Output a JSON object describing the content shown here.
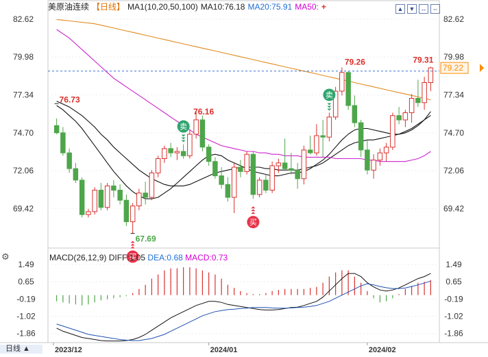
{
  "header": {
    "title": "美原油连续",
    "period": "【日线】",
    "ma1": "MA1(10,20,50,100)",
    "ma10": "MA10:76.18",
    "ma20": "MA20:75.91",
    "ma50": "MA50:",
    "plus_icon": "plus-icon"
  },
  "toolbar_icons": [
    "up-arrow-icon",
    "down-arrow-icon",
    "left-right-icon",
    "expand-icon"
  ],
  "macd_header": {
    "title": "MACD(26,12,9)",
    "diff": "DIFF:1.05",
    "dea": "DEA:0.68",
    "macd": "MACD:0.73"
  },
  "bottom_tab": "日线 ▲",
  "colors": {
    "up": "#d9302c",
    "down": "#4da64a",
    "ma10": "#111111",
    "ma20": "#111111",
    "ma50": "#cc22cc",
    "ma100": "#e08a1e",
    "last_price": "#ff8c00",
    "buy_badge": "#e8344a",
    "sell_badge": "#2fa56d"
  },
  "chart_data": [
    {
      "type": "candlestick",
      "ylim": [
        67.0,
        83.0
      ],
      "price_ticks": [
        "82.62",
        "79.98",
        "77.34",
        "74.70",
        "72.06",
        "69.42"
      ],
      "last_price_label": "79.22",
      "annotations": {
        "high_left": "76.73",
        "low": "67.69",
        "mid_high": "76.16",
        "peak": "79.26",
        "last_high": "79.31"
      },
      "signals": [
        {
          "text": "买",
          "kind": "buy",
          "index": 12
        },
        {
          "text": "卖",
          "kind": "sell",
          "index": 20
        },
        {
          "text": "买",
          "kind": "buy",
          "index": 31
        },
        {
          "text": "卖",
          "kind": "sell",
          "index": 43
        }
      ],
      "candles": [
        [
          75.2,
          75.7,
          74.6,
          74.7
        ],
        [
          74.7,
          75.1,
          73.1,
          73.3
        ],
        [
          73.3,
          73.6,
          71.9,
          72.2
        ],
        [
          72.2,
          72.6,
          71.2,
          71.4
        ],
        [
          71.4,
          71.6,
          68.8,
          69.0
        ],
        [
          69.0,
          69.4,
          68.8,
          69.2
        ],
        [
          69.2,
          70.9,
          69.0,
          70.7
        ],
        [
          70.7,
          71.2,
          69.3,
          69.5
        ],
        [
          69.5,
          71.2,
          69.3,
          71.0
        ],
        [
          71.0,
          71.4,
          70.2,
          70.7
        ],
        [
          70.7,
          71.1,
          69.7,
          70.0
        ],
        [
          70.0,
          70.4,
          68.2,
          68.5
        ],
        [
          68.5,
          69.8,
          67.69,
          69.6
        ],
        [
          69.6,
          70.8,
          69.3,
          70.5
        ],
        [
          70.5,
          71.3,
          69.7,
          70.2
        ],
        [
          70.2,
          72.1,
          70.0,
          71.9
        ],
        [
          71.9,
          73.1,
          71.6,
          72.9
        ],
        [
          72.9,
          73.8,
          72.6,
          73.6
        ],
        [
          73.6,
          74.0,
          73.0,
          73.3
        ],
        [
          73.3,
          73.7,
          72.8,
          73.4
        ],
        [
          73.4,
          73.9,
          72.9,
          73.1
        ],
        [
          73.1,
          74.9,
          72.9,
          74.6
        ],
        [
          74.6,
          76.16,
          74.3,
          75.6
        ],
        [
          75.6,
          75.9,
          73.4,
          73.7
        ],
        [
          73.7,
          73.9,
          72.4,
          72.7
        ],
        [
          72.7,
          73.0,
          71.5,
          71.7
        ],
        [
          71.7,
          72.3,
          70.8,
          71.1
        ],
        [
          71.1,
          71.6,
          69.9,
          70.2
        ],
        [
          70.2,
          72.6,
          69.1,
          72.3
        ],
        [
          72.3,
          72.8,
          71.6,
          72.0
        ],
        [
          72.0,
          73.4,
          71.8,
          73.2
        ],
        [
          73.2,
          73.4,
          70.1,
          70.4
        ],
        [
          70.4,
          71.6,
          70.2,
          71.4
        ],
        [
          71.4,
          71.8,
          70.5,
          70.7
        ],
        [
          70.7,
          72.7,
          70.5,
          72.4
        ],
        [
          72.4,
          72.9,
          71.9,
          72.6
        ],
        [
          72.6,
          74.3,
          72.1,
          72.2
        ],
        [
          72.2,
          73.3,
          71.8,
          72.1
        ],
        [
          72.1,
          72.6,
          70.8,
          71.5
        ],
        [
          71.5,
          73.8,
          71.1,
          73.5
        ],
        [
          73.5,
          74.5,
          73.2,
          73.3
        ],
        [
          73.3,
          75.3,
          73.1,
          74.5
        ],
        [
          74.5,
          75.6,
          73.0,
          74.4
        ],
        [
          74.4,
          76.1,
          74.1,
          75.8
        ],
        [
          75.8,
          77.9,
          75.6,
          77.6
        ],
        [
          77.6,
          79.26,
          77.3,
          78.9
        ],
        [
          78.9,
          79.0,
          76.3,
          76.6
        ],
        [
          76.6,
          77.3,
          75.1,
          75.4
        ],
        [
          75.4,
          75.6,
          73.0,
          73.5
        ],
        [
          73.5,
          74.2,
          71.8,
          72.1
        ],
        [
          72.1,
          73.2,
          71.5,
          72.8
        ],
        [
          72.8,
          73.6,
          72.4,
          73.3
        ],
        [
          73.3,
          74.0,
          72.7,
          73.7
        ],
        [
          73.7,
          76.1,
          73.5,
          75.9
        ],
        [
          75.9,
          76.5,
          75.3,
          75.6
        ],
        [
          75.6,
          76.3,
          75.1,
          76.1
        ],
        [
          76.1,
          77.4,
          75.4,
          77.1
        ],
        [
          77.1,
          78.4,
          76.5,
          76.8
        ],
        [
          76.8,
          78.6,
          76.3,
          78.2
        ],
        [
          78.2,
          79.31,
          77.6,
          79.22
        ]
      ],
      "moving_averages": [
        {
          "name": "MA10",
          "values": [
            76.6,
            76.3,
            75.9,
            75.5,
            75.0,
            74.4,
            73.8,
            73.2,
            72.6,
            72.0,
            71.5,
            71.0,
            70.6,
            70.3,
            70.1,
            70.1,
            70.2,
            70.5,
            70.8,
            71.2,
            71.6,
            72.0,
            72.4,
            72.8,
            73.1,
            73.2,
            73.1,
            72.8,
            72.6,
            72.4,
            72.2,
            72.0,
            71.9,
            71.8,
            71.7,
            71.7,
            71.8,
            71.9,
            71.9,
            72.0,
            72.2,
            72.5,
            72.8,
            73.2,
            73.7,
            74.2,
            74.6,
            74.9,
            75.0,
            75.0,
            74.9,
            74.8,
            74.7,
            74.6,
            74.6,
            74.7,
            74.9,
            75.2,
            75.6,
            76.18
          ]
        },
        {
          "name": "MA20",
          "values": [
            76.9,
            76.7,
            76.5,
            76.2,
            75.9,
            75.5,
            75.1,
            74.6,
            74.2,
            73.7,
            73.3,
            72.9,
            72.5,
            72.1,
            71.8,
            71.5,
            71.3,
            71.1,
            71.0,
            71.0,
            71.0,
            71.1,
            71.3,
            71.5,
            71.7,
            71.9,
            72.0,
            72.1,
            72.2,
            72.3,
            72.3,
            72.3,
            72.3,
            72.2,
            72.2,
            72.1,
            72.1,
            72.1,
            72.1,
            72.2,
            72.3,
            72.4,
            72.6,
            72.9,
            73.2,
            73.5,
            73.8,
            74.0,
            74.1,
            74.2,
            74.2,
            74.3,
            74.4,
            74.5,
            74.6,
            74.8,
            75.0,
            75.3,
            75.6,
            75.91
          ]
        },
        {
          "name": "MA50",
          "values": [
            81.9,
            81.6,
            81.3,
            80.9,
            80.5,
            80.1,
            79.7,
            79.3,
            78.9,
            78.5,
            78.2,
            77.9,
            77.6,
            77.3,
            77.0,
            76.7,
            76.4,
            76.1,
            75.8,
            75.5,
            75.2,
            74.9,
            74.6,
            74.4,
            74.2,
            74.0,
            73.8,
            73.7,
            73.6,
            73.5,
            73.4,
            73.4,
            73.3,
            73.3,
            73.2,
            73.2,
            73.1,
            73.1,
            73.1,
            73.0,
            73.0,
            73.0,
            73.0,
            73.0,
            72.9,
            72.9,
            72.9,
            72.9,
            72.9,
            72.8,
            72.8,
            72.7,
            72.7,
            72.7,
            72.7,
            72.7,
            72.8,
            72.9,
            73.1,
            73.4
          ]
        },
        {
          "name": "MA100",
          "values": [
            82.6,
            82.55,
            82.5,
            82.45,
            82.4,
            82.35,
            82.3,
            82.2,
            82.1,
            82.0,
            81.9,
            81.8,
            81.7,
            81.6,
            81.5,
            81.4,
            81.3,
            81.2,
            81.1,
            81.0,
            80.9,
            80.8,
            80.7,
            80.6,
            80.5,
            80.4,
            80.3,
            80.2,
            80.1,
            80.0,
            79.9,
            79.8,
            79.7,
            79.6,
            79.5,
            79.4,
            79.3,
            79.2,
            79.1,
            79.0,
            78.9,
            78.8,
            78.7,
            78.6,
            78.5,
            78.4,
            78.3,
            78.2,
            78.1,
            78.0,
            77.9,
            77.8,
            77.7,
            77.6,
            77.5,
            77.4,
            77.3,
            77.2,
            77.1,
            77.0
          ]
        }
      ]
    },
    {
      "type": "macd",
      "ylim": [
        -2.3,
        1.75
      ],
      "ticks": [
        "1.49",
        "0.65",
        "-0.19",
        "-1.02",
        "-1.86"
      ],
      "x_ticks": [
        {
          "label": "2023/12",
          "index": 0
        },
        {
          "label": "2024/01",
          "index": 24
        },
        {
          "label": "2024/02",
          "index": 49
        }
      ],
      "diff": [
        -1.6,
        -1.75,
        -1.85,
        -1.95,
        -2.05,
        -2.1,
        -2.15,
        -2.2,
        -2.22,
        -2.22,
        -2.22,
        -2.2,
        -2.15,
        -2.05,
        -1.9,
        -1.7,
        -1.5,
        -1.3,
        -1.1,
        -0.95,
        -0.8,
        -0.65,
        -0.5,
        -0.4,
        -0.3,
        -0.3,
        -0.35,
        -0.45,
        -0.5,
        -0.55,
        -0.6,
        -0.65,
        -0.7,
        -0.72,
        -0.72,
        -0.7,
        -0.65,
        -0.6,
        -0.58,
        -0.5,
        -0.4,
        -0.3,
        -0.1,
        0.2,
        0.5,
        0.8,
        1.05,
        1.05,
        0.9,
        0.6,
        0.4,
        0.25,
        0.2,
        0.25,
        0.35,
        0.5,
        0.65,
        0.8,
        0.9,
        1.05
      ],
      "dea": [
        -1.4,
        -1.5,
        -1.6,
        -1.7,
        -1.8,
        -1.9,
        -1.95,
        -2.0,
        -2.05,
        -2.1,
        -2.15,
        -2.18,
        -2.2,
        -2.2,
        -2.15,
        -2.1,
        -2.0,
        -1.9,
        -1.75,
        -1.6,
        -1.45,
        -1.3,
        -1.15,
        -1.0,
        -0.9,
        -0.8,
        -0.75,
        -0.7,
        -0.68,
        -0.65,
        -0.63,
        -0.6,
        -0.6,
        -0.6,
        -0.62,
        -0.63,
        -0.63,
        -0.62,
        -0.6,
        -0.58,
        -0.55,
        -0.5,
        -0.4,
        -0.3,
        -0.15,
        0.0,
        0.15,
        0.3,
        0.45,
        0.55,
        0.5,
        0.42,
        0.36,
        0.32,
        0.32,
        0.35,
        0.42,
        0.5,
        0.58,
        0.68
      ],
      "macd": [
        -0.3,
        -0.35,
        -0.4,
        -0.45,
        -0.5,
        -0.45,
        -0.35,
        -0.25,
        -0.2,
        -0.15,
        -0.1,
        -0.05,
        0.1,
        0.3,
        0.5,
        0.8,
        1.0,
        1.2,
        1.3,
        1.3,
        1.35,
        1.35,
        1.3,
        1.2,
        1.1,
        1.0,
        0.8,
        0.5,
        0.35,
        0.2,
        0.1,
        0.05,
        0.05,
        0.1,
        0.2,
        0.25,
        0.3,
        0.3,
        0.3,
        0.3,
        0.35,
        0.4,
        0.6,
        0.9,
        1.1,
        1.2,
        1.2,
        0.9,
        0.6,
        0.2,
        -0.15,
        -0.35,
        -0.3,
        -0.15,
        0.05,
        0.3,
        0.45,
        0.6,
        0.65,
        0.73
      ]
    }
  ]
}
